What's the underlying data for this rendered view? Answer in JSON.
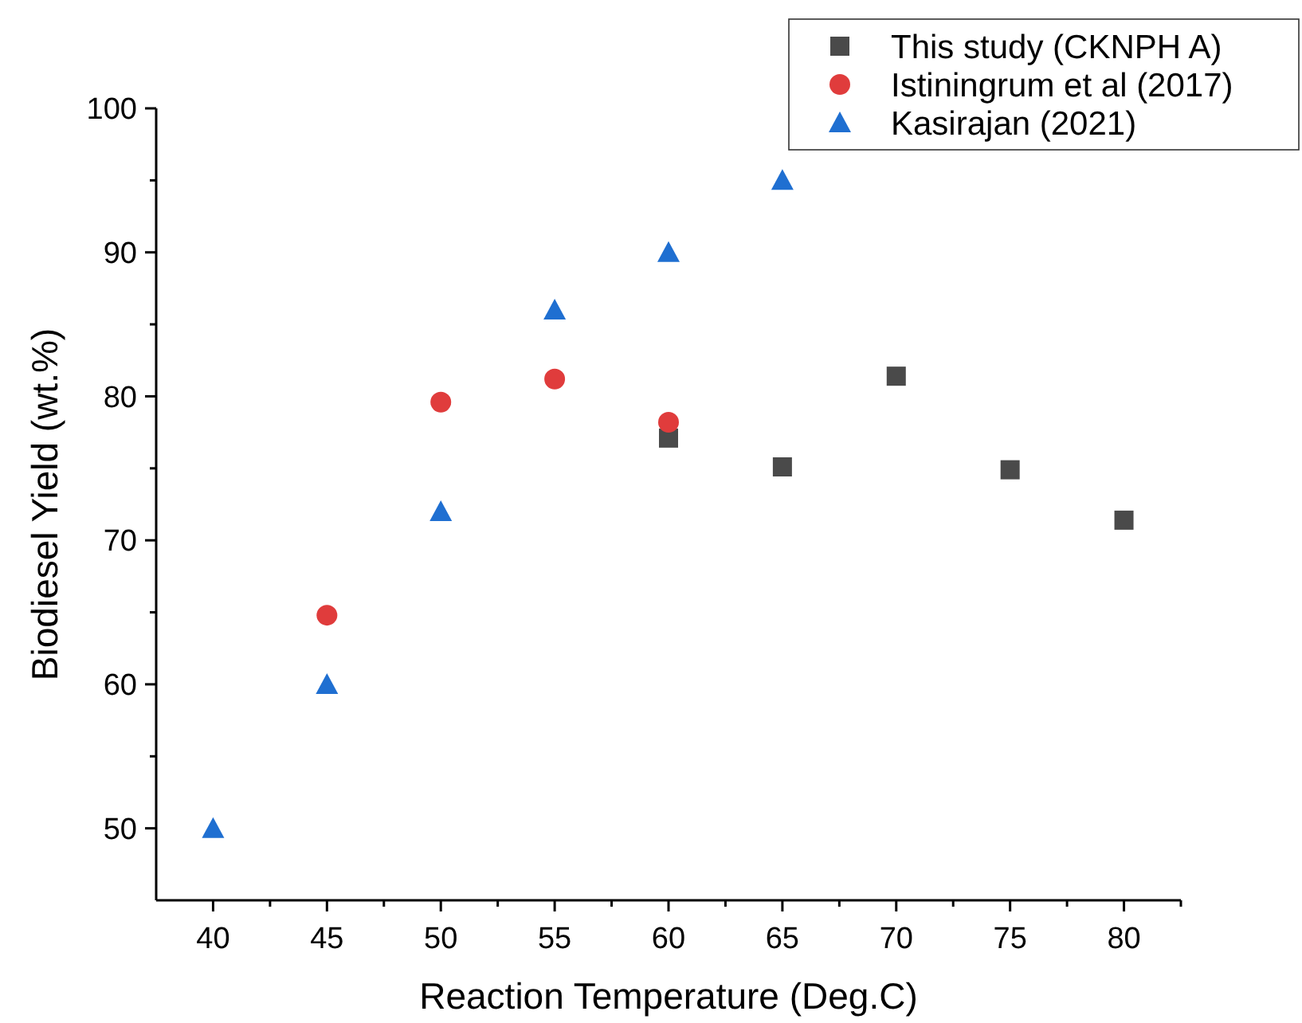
{
  "chart_data": {
    "type": "scatter",
    "xlabel": "Reaction Temperature (Deg.C)",
    "ylabel": "Biodiesel Yield (wt.%)",
    "xlim": [
      37.5,
      82.5
    ],
    "xticks": [
      40,
      {
        "value": 42.5,
        "label": null
      },
      45,
      {
        "value": 47.5,
        "label": null
      },
      50,
      {
        "value": 52.5,
        "label": null
      },
      55,
      {
        "value": 57.5,
        "label": null
      },
      60,
      {
        "value": 62.5,
        "label": null
      },
      65,
      {
        "value": 67.5,
        "label": null
      },
      70,
      {
        "value": 72.5,
        "label": null
      },
      75,
      {
        "value": 77.5,
        "label": null
      },
      80,
      {
        "value": 82.5,
        "label": null
      }
    ],
    "ylim": [
      45,
      100
    ],
    "yticks": [
      50,
      {
        "value": 55,
        "label": null
      },
      60,
      {
        "value": 65,
        "label": null
      },
      70,
      {
        "value": 75,
        "label": null
      },
      80,
      {
        "value": 85,
        "label": null
      },
      90,
      {
        "value": 95,
        "label": null
      },
      100
    ],
    "legend": "top right",
    "grid": false,
    "series": [
      {
        "name": "This study (CKNPH A)",
        "color": "#4a4a4a",
        "marker": "square",
        "x": [
          60,
          65,
          70,
          75,
          80
        ],
        "values": [
          77.1,
          75.1,
          81.4,
          74.9,
          71.4
        ]
      },
      {
        "name": "Istiningrum et al (2017)",
        "color": "#e03c3c",
        "marker": "circle",
        "x": [
          45,
          50,
          55,
          60
        ],
        "values": [
          64.8,
          79.6,
          81.2,
          78.2
        ]
      },
      {
        "name": "Kasirajan (2021)",
        "color": "#1f6fd1",
        "marker": "triangle",
        "x": [
          40,
          45,
          50,
          55,
          60,
          65
        ],
        "values": [
          50,
          60,
          72,
          86,
          90,
          95
        ]
      }
    ]
  }
}
